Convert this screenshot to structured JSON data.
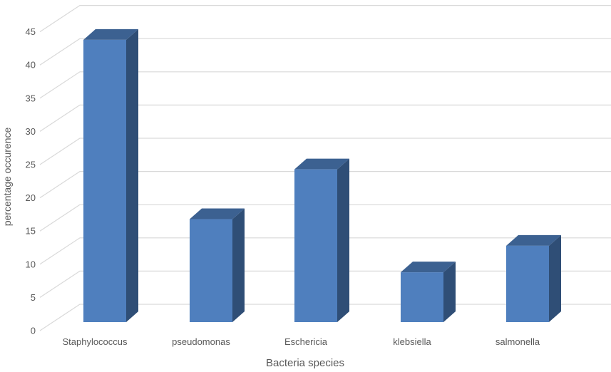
{
  "chart_data": {
    "type": "bar",
    "projection": "3d-oblique",
    "title": "",
    "xlabel": "Bacteria species",
    "ylabel": "percentage occurence",
    "categories": [
      "Staphylococcus",
      "pseudomonas",
      "Eschericia",
      "klebsiella",
      "salmonella"
    ],
    "values": [
      42.5,
      15.5,
      23,
      7.5,
      11.5
    ],
    "series": [
      {
        "name": "percentage occurence",
        "values": [
          42.5,
          15.5,
          23,
          7.5,
          11.5
        ]
      }
    ],
    "ylim": [
      0,
      45
    ],
    "ytick_step": 5,
    "ytick_labels": [
      "0",
      "5",
      "10",
      "15",
      "20",
      "25",
      "30",
      "35",
      "40",
      "45"
    ],
    "grid": true,
    "legend_position": "none",
    "colors": {
      "bar_front": "#4F7FBE",
      "bar_top": "#3C6191",
      "bar_side": "#2F4E76",
      "gridline": "#D9D9D9",
      "text": "#595959",
      "background": "#FFFFFF"
    }
  }
}
